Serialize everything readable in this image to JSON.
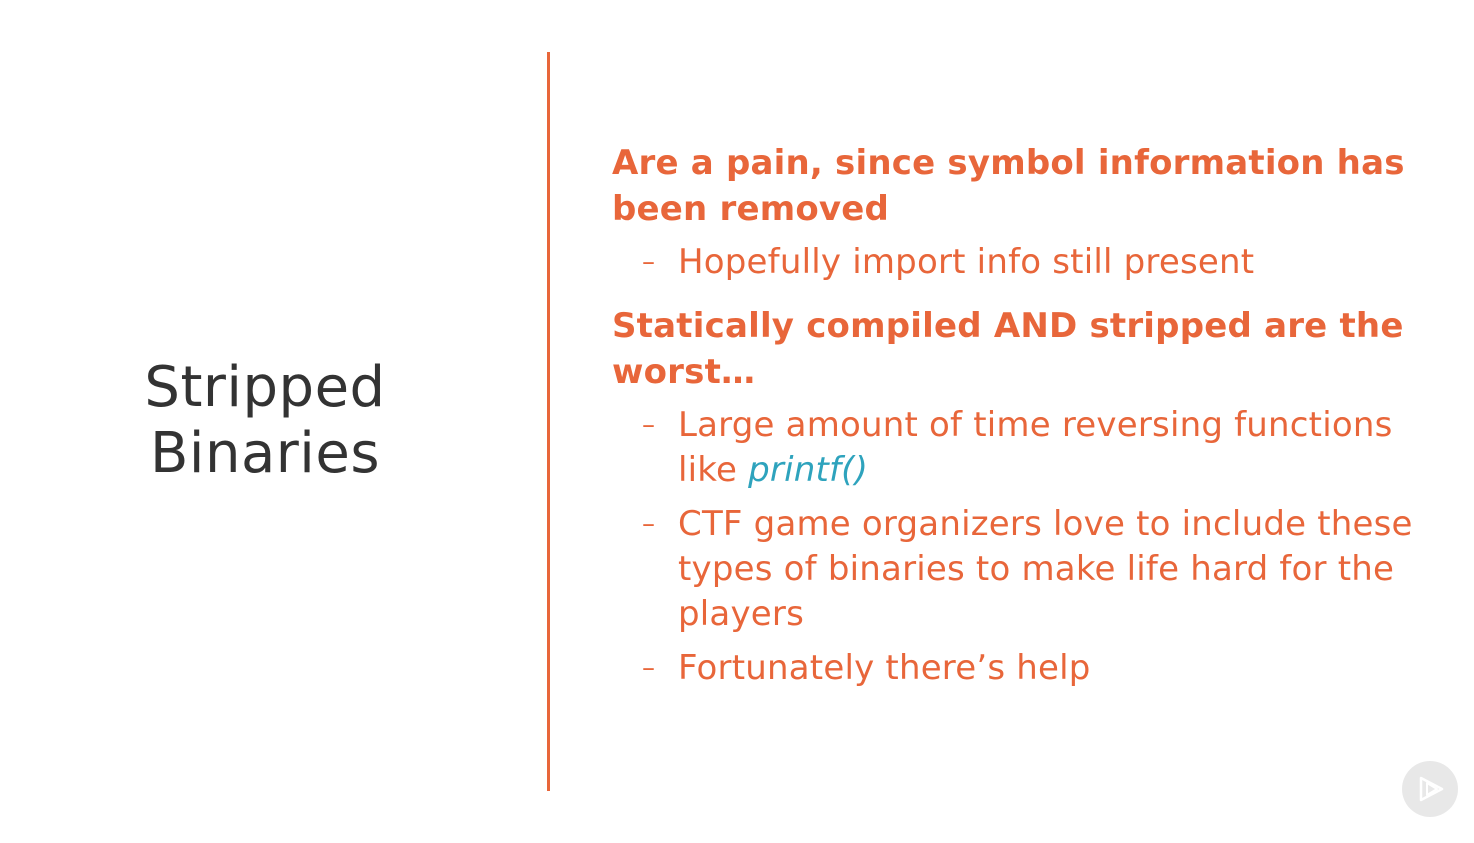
{
  "slide": {
    "title_lines": [
      "Stripped",
      "Binaries"
    ],
    "groups": [
      {
        "heading": "Are a pain, since symbol information has been removed",
        "items": [
          {
            "text": "Hopefully import info still present"
          }
        ]
      },
      {
        "heading": "Statically compiled AND stripped are the worst…",
        "items": [
          {
            "text": "Large amount of time reversing functions like ",
            "code": "printf()"
          },
          {
            "text": "CTF game organizers love to include these types of binaries to make life hard for the players"
          },
          {
            "text": "Fortunately there’s help"
          }
        ]
      }
    ],
    "dash_char": "–"
  },
  "colors": {
    "accent": "#e8663a",
    "title": "#333333",
    "code": "#2ea3bd",
    "badge": "#e6e6e6"
  },
  "icons": {
    "corner_badge": "play-logo-icon"
  }
}
